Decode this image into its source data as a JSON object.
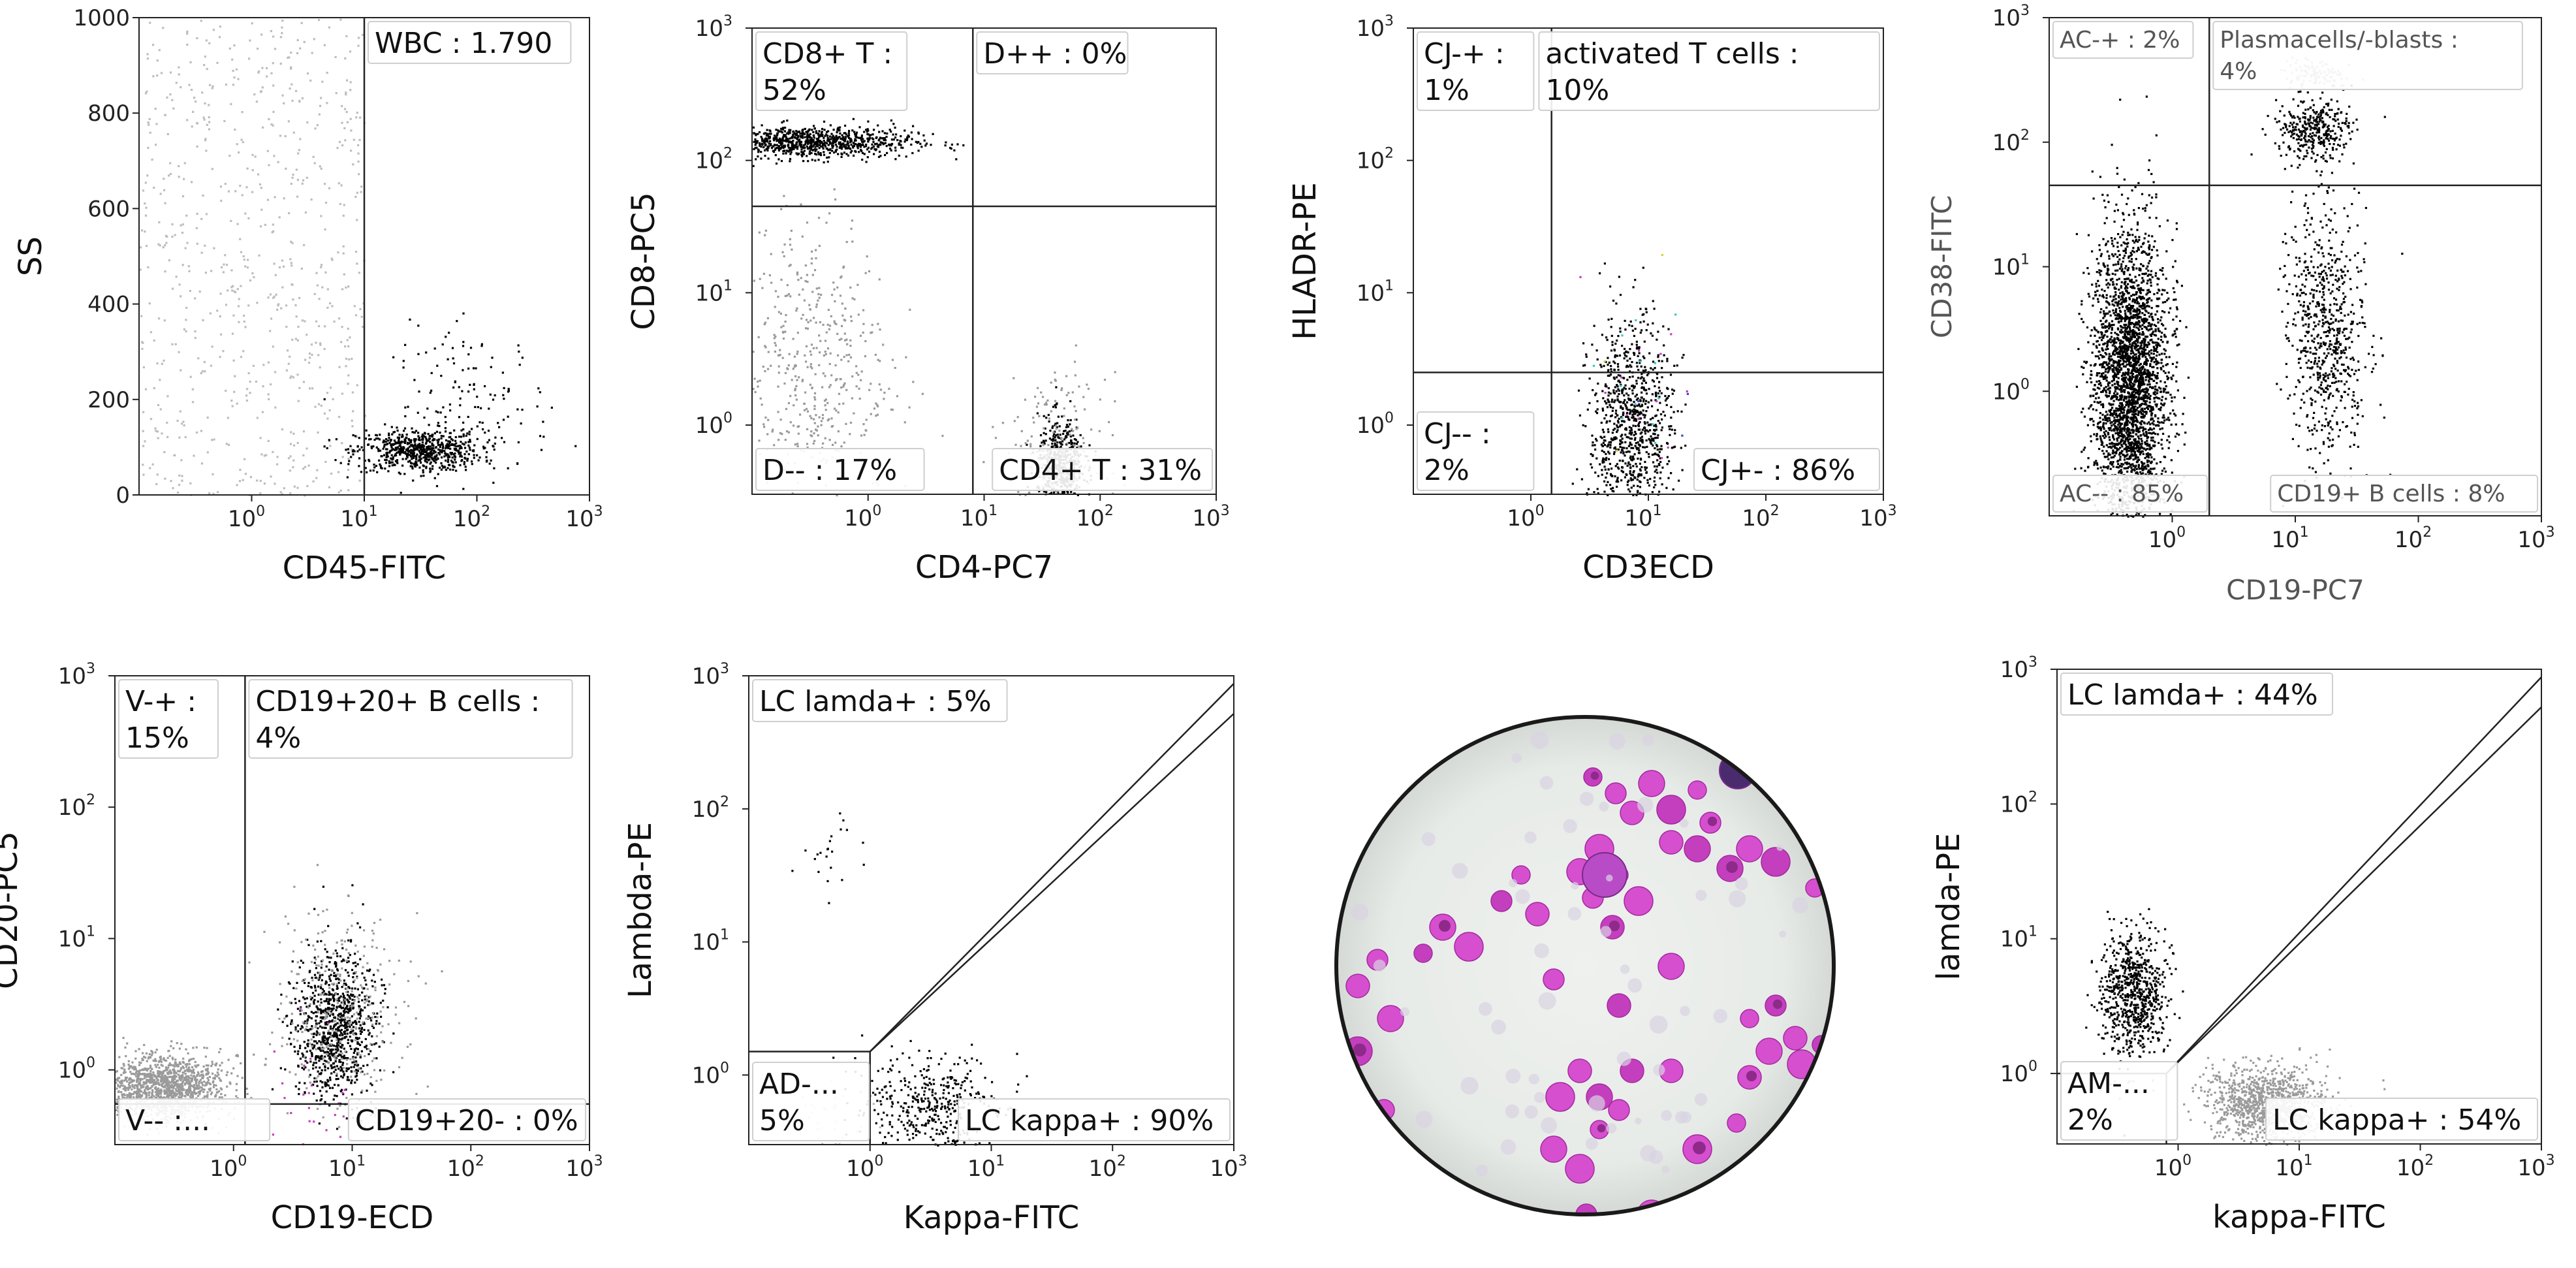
{
  "colors": {
    "dot_black": "#000000",
    "dot_gray": "#9a9a9a",
    "dot_light": "#bdbdbd",
    "accent_magenta": "#c23fbf",
    "accent_blue": "#3a46c8",
    "accent_yellow": "#d8cf3a",
    "accent_cyan": "#3ac8c8",
    "label_border": "#cfcfcf"
  },
  "chart_data": [
    {
      "id": "p1",
      "type": "scatter",
      "xlabel": "CD45-FITC",
      "ylabel": "SS",
      "xscale": "log",
      "xticks": [
        {
          "v": 1,
          "label": "10",
          "exp": "0"
        },
        {
          "v": 10,
          "label": "10",
          "exp": "1"
        },
        {
          "v": 100,
          "label": "10",
          "exp": "2"
        },
        {
          "v": 1000,
          "label": "10",
          "exp": "3"
        }
      ],
      "yticks": [
        {
          "v": 0,
          "label": "0"
        },
        {
          "v": 200,
          "label": "200"
        },
        {
          "v": 400,
          "label": "400"
        },
        {
          "v": 600,
          "label": "600"
        },
        {
          "v": 800,
          "label": "800"
        },
        {
          "v": 1000,
          "label": "1000"
        }
      ],
      "gate_x": 10,
      "regions": [
        {
          "name": "WBC",
          "label": "WBC : 1.790",
          "pos": "top-right"
        }
      ],
      "populations": [
        {
          "name": "debris",
          "color": "light",
          "n": 700,
          "cx": 0.32,
          "cy": 500,
          "sx": 1.4,
          "sy": 290,
          "dist": "uniform"
        },
        {
          "name": "WBC cluster",
          "color": "black",
          "n": 650,
          "cx": 30,
          "cy": 95,
          "sx": 0.28,
          "sy": 22
        },
        {
          "name": "WBC tail",
          "color": "black",
          "n": 140,
          "cx": 90,
          "cy": 190,
          "sx": 0.35,
          "sy": 80
        }
      ]
    },
    {
      "id": "p2",
      "type": "scatter",
      "xlabel": "CD4-PC7",
      "ylabel": "CD8-PC5",
      "xscale": "log",
      "yscale": "log",
      "xticks": [
        {
          "v": 1,
          "label": "10",
          "exp": "0"
        },
        {
          "v": 10,
          "label": "10",
          "exp": "1"
        },
        {
          "v": 100,
          "label": "10",
          "exp": "2"
        },
        {
          "v": 1000,
          "label": "10",
          "exp": "3"
        }
      ],
      "yticks": [
        {
          "v": 1,
          "label": "10",
          "exp": "0"
        },
        {
          "v": 10,
          "label": "10",
          "exp": "1"
        },
        {
          "v": 100,
          "label": "10",
          "exp": "2"
        },
        {
          "v": 1000,
          "label": "10",
          "exp": "3"
        }
      ],
      "gate_x": 8,
      "gate_y": 45,
      "regions": [
        {
          "name": "CD8+ T",
          "label": "CD8+ T :",
          "label2": "52%",
          "pos": "top-left"
        },
        {
          "name": "D++",
          "label": "D++ : 0%",
          "pos": "top-right"
        },
        {
          "name": "D--",
          "label": "D-- : 17%",
          "pos": "bottom-left"
        },
        {
          "name": "CD4+ T",
          "label": "CD4+ T : 31%",
          "pos": "bottom-right"
        }
      ],
      "populations": [
        {
          "name": "CD8+ T",
          "color": "black",
          "n": 900,
          "cx": 0.3,
          "cy": 140,
          "sx": 0.45,
          "sy": 0.06
        },
        {
          "name": "CD8 smear",
          "color": "gray",
          "n": 500,
          "cx": 0.3,
          "cy": 3,
          "sx": 0.35,
          "sy": 0.55
        },
        {
          "name": "CD4+ T",
          "color": "black",
          "n": 500,
          "cx": 45,
          "cy": 0.5,
          "sx": 0.1,
          "sy": 0.18
        },
        {
          "name": "CD4 halo",
          "color": "gray",
          "n": 200,
          "cx": 40,
          "cy": 0.6,
          "sx": 0.22,
          "sy": 0.3
        }
      ]
    },
    {
      "id": "p3",
      "type": "scatter",
      "xlabel": "CD3ECD",
      "ylabel": "HLADR-PE",
      "xscale": "log",
      "yscale": "log",
      "xticks": [
        {
          "v": 1,
          "label": "10",
          "exp": "0"
        },
        {
          "v": 10,
          "label": "10",
          "exp": "1"
        },
        {
          "v": 100,
          "label": "10",
          "exp": "2"
        },
        {
          "v": 1000,
          "label": "10",
          "exp": "3"
        }
      ],
      "yticks": [
        {
          "v": 1,
          "label": "10",
          "exp": "0"
        },
        {
          "v": 10,
          "label": "10",
          "exp": "1"
        },
        {
          "v": 100,
          "label": "10",
          "exp": "2"
        },
        {
          "v": 1000,
          "label": "10",
          "exp": "3"
        }
      ],
      "gate_x": 1.5,
      "gate_y": 2.5,
      "regions": [
        {
          "name": "CJ-+",
          "label": "CJ-+ :",
          "label2": "1%",
          "pos": "top-left"
        },
        {
          "name": "activated T cells",
          "label": "activated T cells :",
          "label2": "10%",
          "pos": "top-right"
        },
        {
          "name": "CJ--",
          "label": "CJ-- :",
          "label2": "2%",
          "pos": "bottom-left"
        },
        {
          "name": "CJ+-",
          "label": "CJ+- : 86%",
          "pos": "bottom-right"
        }
      ],
      "populations": [
        {
          "name": "T cells",
          "color": "black",
          "n": 950,
          "cx": 7,
          "cy": 0.9,
          "sx": 0.18,
          "sy": 0.42
        },
        {
          "name": "colored events",
          "color": "mixed",
          "n": 40,
          "cx": 8,
          "cy": 2,
          "sx": 0.2,
          "sy": 0.45
        }
      ]
    },
    {
      "id": "p4",
      "type": "scatter",
      "xlabel": "CD19-PC7",
      "ylabel": "CD38-FITC",
      "xscale": "log",
      "yscale": "log",
      "small_labels": true,
      "xticks": [
        {
          "v": 1,
          "label": "10",
          "exp": "0"
        },
        {
          "v": 10,
          "label": "10",
          "exp": "1"
        },
        {
          "v": 100,
          "label": "10",
          "exp": "2"
        },
        {
          "v": 1000,
          "label": "10",
          "exp": "3"
        }
      ],
      "yticks": [
        {
          "v": 1,
          "label": "10",
          "exp": "0"
        },
        {
          "v": 10,
          "label": "10",
          "exp": "1"
        },
        {
          "v": 100,
          "label": "10",
          "exp": "2"
        },
        {
          "v": 1000,
          "label": "10",
          "exp": "3"
        }
      ],
      "gate_x": 2,
      "gate_y": 45,
      "regions": [
        {
          "name": "AC-+",
          "label": "AC-+ : 2%",
          "pos": "top-left"
        },
        {
          "name": "Plasmacells/-blasts",
          "label": "Plasmacells/-blasts :",
          "label2": "4%",
          "pos": "top-right"
        },
        {
          "name": "AC--",
          "label": "AC-- : 85%",
          "pos": "bottom-left"
        },
        {
          "name": "CD19+ B cells",
          "label": "CD19+ B cells : 8%",
          "pos": "bottom-right"
        }
      ],
      "populations": [
        {
          "name": "AC-- mass",
          "color": "black",
          "n": 3000,
          "cx": 0.45,
          "cy": 1.2,
          "sx": 0.15,
          "sy": 0.6
        },
        {
          "name": "Plasma cells",
          "color": "black",
          "n": 350,
          "cx": 14,
          "cy": 130,
          "sx": 0.15,
          "sy": 0.12
        },
        {
          "name": "Plasma top",
          "color": "gray",
          "n": 120,
          "cx": 14,
          "cy": 350,
          "sx": 0.12,
          "sy": 0.06
        },
        {
          "name": "CD19+ B",
          "color": "black",
          "n": 700,
          "cx": 18,
          "cy": 3,
          "sx": 0.16,
          "sy": 0.5
        }
      ]
    },
    {
      "id": "p5",
      "type": "scatter",
      "xlabel": "CD19-ECD",
      "ylabel": "CD20-PC5",
      "xscale": "log",
      "yscale": "log",
      "xticks": [
        {
          "v": 1,
          "label": "10",
          "exp": "0"
        },
        {
          "v": 10,
          "label": "10",
          "exp": "1"
        },
        {
          "v": 100,
          "label": "10",
          "exp": "2"
        },
        {
          "v": 1000,
          "label": "10",
          "exp": "3"
        }
      ],
      "yticks": [
        {
          "v": 1,
          "label": "10",
          "exp": "0"
        },
        {
          "v": 10,
          "label": "10",
          "exp": "1"
        },
        {
          "v": 100,
          "label": "10",
          "exp": "2"
        },
        {
          "v": 1000,
          "label": "10",
          "exp": "3"
        }
      ],
      "gate_x": 1.25,
      "gate_y": 0.55,
      "regions": [
        {
          "name": "V-+",
          "label": "V-+ :",
          "label2": "15%",
          "pos": "top-left"
        },
        {
          "name": "CD19+20+ B cells",
          "label": "CD19+20+ B cells :",
          "label2": "4%",
          "pos": "top-right"
        },
        {
          "name": "V--",
          "label": "V-- :...",
          "pos": "bottom-left"
        },
        {
          "name": "CD19+20-",
          "label": "CD19+20- : 0%",
          "pos": "bottom-right"
        }
      ],
      "populations": [
        {
          "name": "V-- mass",
          "color": "gray",
          "n": 1400,
          "cx": 0.25,
          "cy": 0.75,
          "sx": 0.25,
          "sy": 0.12
        },
        {
          "name": "B cells",
          "color": "black",
          "n": 900,
          "cx": 7,
          "cy": 2.2,
          "sx": 0.17,
          "sy": 0.28
        },
        {
          "name": "B halo",
          "color": "gray",
          "n": 300,
          "cx": 8,
          "cy": 3,
          "sx": 0.28,
          "sy": 0.38
        },
        {
          "name": "magenta",
          "color": "magenta",
          "n": 25,
          "cx": 5,
          "cy": 0.6,
          "sx": 0.2,
          "sy": 0.25
        }
      ]
    },
    {
      "id": "p6",
      "type": "scatter",
      "xlabel": "Kappa-FITC",
      "ylabel": "Lambda-PE",
      "xscale": "log",
      "yscale": "log",
      "xticks": [
        {
          "v": 1,
          "label": "10",
          "exp": "0"
        },
        {
          "v": 10,
          "label": "10",
          "exp": "1"
        },
        {
          "v": 100,
          "label": "10",
          "exp": "2"
        },
        {
          "v": 1000,
          "label": "10",
          "exp": "3"
        }
      ],
      "yticks": [
        {
          "v": 1,
          "label": "10",
          "exp": "0"
        },
        {
          "v": 10,
          "label": "10",
          "exp": "1"
        },
        {
          "v": 100,
          "label": "10",
          "exp": "2"
        },
        {
          "v": 1000,
          "label": "10",
          "exp": "3"
        }
      ],
      "diagonal_gate": {
        "x0": 1,
        "y0": 1.5
      },
      "regions": [
        {
          "name": "LC lamda+",
          "label": "LC lamda+ : 5%",
          "pos": "top-left"
        },
        {
          "name": "AD-",
          "label": "AD-...",
          "label2": "5%",
          "pos": "bottom-left"
        },
        {
          "name": "LC kappa+",
          "label": "LC kappa+ : 90%",
          "pos": "bottom-right"
        }
      ],
      "populations": [
        {
          "name": "kappa+ B",
          "color": "black",
          "n": 420,
          "cx": 3.2,
          "cy": 0.55,
          "sx": 0.28,
          "sy": 0.2
        },
        {
          "name": "lambda+ B",
          "color": "black",
          "n": 22,
          "cx": 0.5,
          "cy": 50,
          "sx": 0.14,
          "sy": 0.18
        },
        {
          "name": "double neg",
          "color": "light",
          "n": 40,
          "cx": 0.45,
          "cy": 0.5,
          "sx": 0.15,
          "sy": 0.15
        }
      ]
    },
    {
      "id": "p8",
      "type": "scatter",
      "xlabel": "kappa-FITC",
      "ylabel": "lamda-PE",
      "xscale": "log",
      "yscale": "log",
      "xticks": [
        {
          "v": 1,
          "label": "10",
          "exp": "0"
        },
        {
          "v": 10,
          "label": "10",
          "exp": "1"
        },
        {
          "v": 100,
          "label": "10",
          "exp": "2"
        },
        {
          "v": 1000,
          "label": "10",
          "exp": "3"
        }
      ],
      "yticks": [
        {
          "v": 1,
          "label": "10",
          "exp": "0"
        },
        {
          "v": 10,
          "label": "10",
          "exp": "1"
        },
        {
          "v": 100,
          "label": "10",
          "exp": "2"
        },
        {
          "v": 1000,
          "label": "10",
          "exp": "3"
        }
      ],
      "diagonal_gate": {
        "x0": 0.8,
        "y0": 1
      },
      "regions": [
        {
          "name": "LC lamda+",
          "label": "LC lamda+ : 44%",
          "pos": "top-left"
        },
        {
          "name": "AM-",
          "label": "AM-...",
          "label2": "2%",
          "pos": "bottom-left"
        },
        {
          "name": "LC kappa+",
          "label": "LC kappa+ : 54%",
          "pos": "bottom-right"
        }
      ],
      "populations": [
        {
          "name": "lambda+ B",
          "color": "black",
          "n": 750,
          "cx": 0.42,
          "cy": 4,
          "sx": 0.13,
          "sy": 0.22
        },
        {
          "name": "kappa+ B",
          "color": "gray",
          "n": 1100,
          "cx": 5.5,
          "cy": 0.6,
          "sx": 0.25,
          "sy": 0.14
        },
        {
          "name": "magenta",
          "color": "magenta",
          "n": 12,
          "cx": 0.4,
          "cy": 0.8,
          "sx": 0.12,
          "sy": 0.05
        }
      ]
    }
  ]
}
